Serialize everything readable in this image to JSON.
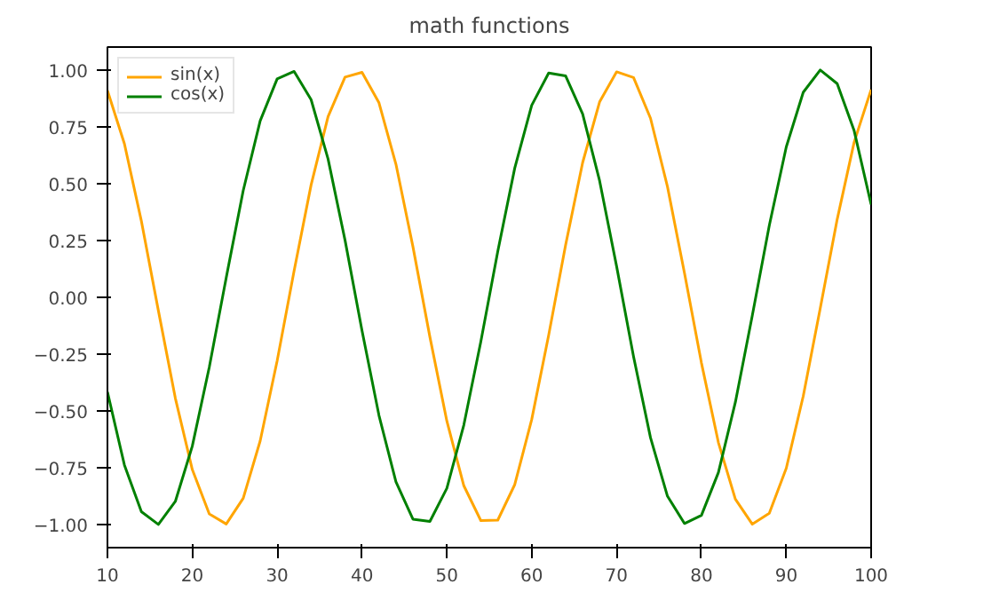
{
  "chart_data": {
    "type": "line",
    "title": "math functions",
    "x": [
      10,
      12,
      14,
      16,
      18,
      20,
      22,
      24,
      26,
      28,
      30,
      32,
      34,
      36,
      38,
      40,
      42,
      44,
      46,
      48,
      50,
      52,
      54,
      56,
      58,
      60,
      62,
      64,
      66,
      68,
      70,
      72,
      74,
      76,
      78,
      80,
      82,
      84,
      86,
      88,
      90,
      92,
      94,
      96,
      98,
      100
    ],
    "series": [
      {
        "name": "sin(x)",
        "color": "#ffa500",
        "values": [
          0.909,
          0.675,
          0.335,
          -0.058,
          -0.443,
          -0.757,
          -0.952,
          -0.996,
          -0.883,
          -0.631,
          -0.279,
          0.117,
          0.494,
          0.794,
          0.968,
          0.989,
          0.855,
          0.585,
          0.223,
          -0.174,
          -0.544,
          -0.828,
          -0.981,
          -0.979,
          -0.823,
          -0.537,
          -0.166,
          0.231,
          0.592,
          0.859,
          0.991,
          0.966,
          0.787,
          0.486,
          0.107,
          -0.288,
          -0.638,
          -0.887,
          -0.997,
          -0.949,
          -0.751,
          -0.434,
          -0.049,
          0.343,
          0.682,
          0.913
        ]
      },
      {
        "name": "cos(x)",
        "color": "#008000",
        "values": [
          -0.416,
          -0.737,
          -0.942,
          -0.998,
          -0.897,
          -0.654,
          -0.307,
          0.087,
          0.469,
          0.776,
          0.96,
          0.993,
          0.869,
          0.608,
          0.251,
          -0.146,
          -0.519,
          -0.811,
          -0.975,
          -0.985,
          -0.839,
          -0.561,
          -0.195,
          0.202,
          0.568,
          0.844,
          0.986,
          0.973,
          0.806,
          0.512,
          0.137,
          -0.26,
          -0.617,
          -0.874,
          -0.994,
          -0.958,
          -0.77,
          -0.461,
          -0.079,
          0.316,
          0.661,
          0.901,
          0.999,
          0.939,
          0.732,
          0.408
        ]
      }
    ],
    "xlim": [
      10,
      100
    ],
    "xticks": [
      10,
      20,
      30,
      40,
      50,
      60,
      70,
      80,
      90,
      100
    ],
    "ylim": [
      -1.1,
      1.1
    ],
    "yticks": [
      {
        "value": -1,
        "label": "−1.00"
      },
      {
        "value": -0.75,
        "label": "−0.75"
      },
      {
        "value": -0.5,
        "label": "−0.50"
      },
      {
        "value": -0.25,
        "label": "−0.25"
      },
      {
        "value": 0,
        "label": "0.00"
      },
      {
        "value": 0.25,
        "label": "0.25"
      },
      {
        "value": 0.5,
        "label": "0.50"
      },
      {
        "value": 0.75,
        "label": "0.75"
      },
      {
        "value": 1,
        "label": "1.00"
      }
    ],
    "legend": "top left",
    "grid": false,
    "marker": "none",
    "line_style": "solid"
  }
}
